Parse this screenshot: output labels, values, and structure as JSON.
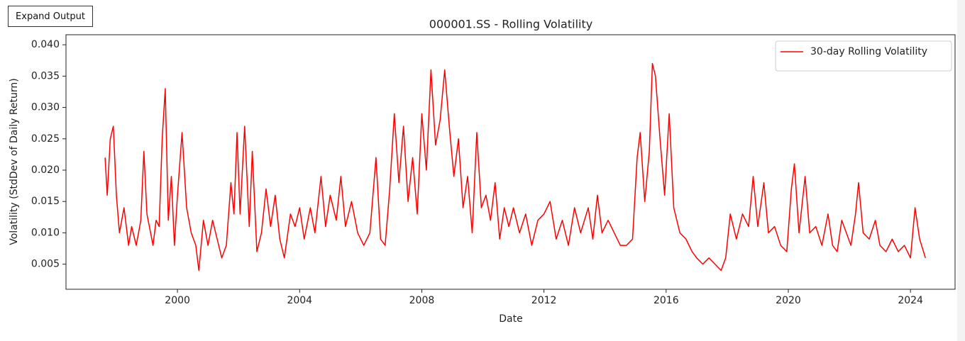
{
  "button": "Expand Output",
  "chart_data": {
    "type": "line",
    "title": "000001.SS - Rolling Volatility",
    "x_label": "Date",
    "y_label": "Volatility (StdDev of Daily Return)",
    "xlim": [
      1996.35,
      2025.46
    ],
    "ylim": [
      0.001,
      0.0416
    ],
    "xticks": [
      2000,
      2004,
      2008,
      2012,
      2016,
      2020,
      2024
    ],
    "yticks": [
      0.005,
      {
        "value": 0.01,
        "label": "0.010"
      },
      0.015,
      {
        "value": 0.02,
        "label": "0.020"
      },
      0.025,
      {
        "value": 0.03,
        "label": "0.030"
      },
      0.035,
      {
        "value": 0.04,
        "label": "0.040"
      }
    ],
    "grid": false,
    "legend": "upper right",
    "x": [
      1997.63,
      1997.7,
      1997.8,
      1997.9,
      1998.0,
      1998.1,
      1998.25,
      1998.4,
      1998.5,
      1998.65,
      1998.8,
      1998.9,
      1999.0,
      1999.2,
      1999.3,
      1999.4,
      1999.5,
      1999.6,
      1999.7,
      1999.8,
      1999.9,
      2000.0,
      2000.15,
      2000.3,
      2000.45,
      2000.6,
      2000.7,
      2000.85,
      2001.0,
      2001.15,
      2001.3,
      2001.45,
      2001.6,
      2001.75,
      2001.85,
      2001.95,
      2002.05,
      2002.2,
      2002.35,
      2002.45,
      2002.6,
      2002.75,
      2002.9,
      2003.05,
      2003.2,
      2003.35,
      2003.5,
      2003.7,
      2003.85,
      2004.0,
      2004.15,
      2004.35,
      2004.5,
      2004.7,
      2004.85,
      2005.0,
      2005.2,
      2005.35,
      2005.5,
      2005.7,
      2005.9,
      2006.1,
      2006.3,
      2006.5,
      2006.65,
      2006.8,
      2006.95,
      2007.1,
      2007.25,
      2007.4,
      2007.55,
      2007.7,
      2007.85,
      2008.0,
      2008.15,
      2008.3,
      2008.45,
      2008.6,
      2008.75,
      2008.9,
      2009.05,
      2009.2,
      2009.35,
      2009.5,
      2009.65,
      2009.8,
      2009.95,
      2010.1,
      2010.25,
      2010.4,
      2010.55,
      2010.7,
      2010.85,
      2011.0,
      2011.2,
      2011.4,
      2011.6,
      2011.8,
      2012.0,
      2012.2,
      2012.4,
      2012.6,
      2012.8,
      2013.0,
      2013.2,
      2013.45,
      2013.6,
      2013.75,
      2013.9,
      2014.1,
      2014.3,
      2014.5,
      2014.7,
      2014.9,
      2015.05,
      2015.15,
      2015.3,
      2015.45,
      2015.55,
      2015.65,
      2015.8,
      2015.95,
      2016.1,
      2016.25,
      2016.45,
      2016.65,
      2016.85,
      2017.0,
      2017.2,
      2017.4,
      2017.6,
      2017.8,
      2017.95,
      2018.1,
      2018.3,
      2018.5,
      2018.7,
      2018.85,
      2019.0,
      2019.2,
      2019.35,
      2019.55,
      2019.75,
      2019.95,
      2020.1,
      2020.2,
      2020.35,
      2020.55,
      2020.7,
      2020.9,
      2021.1,
      2021.3,
      2021.45,
      2021.6,
      2021.75,
      2021.9,
      2022.05,
      2022.2,
      2022.3,
      2022.45,
      2022.65,
      2022.85,
      2023.0,
      2023.2,
      2023.4,
      2023.6,
      2023.8,
      2024.0,
      2024.15,
      2024.3,
      2024.49
    ],
    "series": [
      {
        "name": "30-day Rolling Volatility",
        "color": "#ff0000",
        "values": [
          0.022,
          0.016,
          0.025,
          0.027,
          0.016,
          0.01,
          0.014,
          0.008,
          0.011,
          0.008,
          0.012,
          0.023,
          0.013,
          0.008,
          0.012,
          0.011,
          0.025,
          0.033,
          0.012,
          0.019,
          0.008,
          0.016,
          0.026,
          0.014,
          0.01,
          0.008,
          0.004,
          0.012,
          0.008,
          0.012,
          0.009,
          0.006,
          0.008,
          0.018,
          0.013,
          0.026,
          0.013,
          0.027,
          0.011,
          0.023,
          0.007,
          0.01,
          0.017,
          0.011,
          0.016,
          0.009,
          0.006,
          0.013,
          0.011,
          0.014,
          0.009,
          0.014,
          0.01,
          0.019,
          0.011,
          0.016,
          0.012,
          0.019,
          0.011,
          0.015,
          0.01,
          0.008,
          0.01,
          0.022,
          0.009,
          0.008,
          0.017,
          0.029,
          0.018,
          0.027,
          0.015,
          0.022,
          0.013,
          0.029,
          0.02,
          0.036,
          0.024,
          0.028,
          0.036,
          0.027,
          0.019,
          0.025,
          0.014,
          0.019,
          0.01,
          0.026,
          0.014,
          0.016,
          0.012,
          0.018,
          0.009,
          0.014,
          0.011,
          0.014,
          0.01,
          0.013,
          0.008,
          0.012,
          0.013,
          0.015,
          0.009,
          0.012,
          0.008,
          0.014,
          0.01,
          0.014,
          0.009,
          0.016,
          0.01,
          0.012,
          0.01,
          0.008,
          0.008,
          0.009,
          0.022,
          0.026,
          0.015,
          0.023,
          0.037,
          0.035,
          0.025,
          0.016,
          0.029,
          0.014,
          0.01,
          0.009,
          0.007,
          0.006,
          0.005,
          0.006,
          0.005,
          0.004,
          0.006,
          0.013,
          0.009,
          0.013,
          0.011,
          0.019,
          0.011,
          0.018,
          0.01,
          0.011,
          0.008,
          0.007,
          0.017,
          0.021,
          0.01,
          0.019,
          0.01,
          0.011,
          0.008,
          0.013,
          0.008,
          0.007,
          0.012,
          0.01,
          0.008,
          0.013,
          0.018,
          0.01,
          0.009,
          0.012,
          0.008,
          0.007,
          0.009,
          0.007,
          0.008,
          0.006,
          0.014,
          0.009,
          0.006
        ]
      }
    ]
  }
}
